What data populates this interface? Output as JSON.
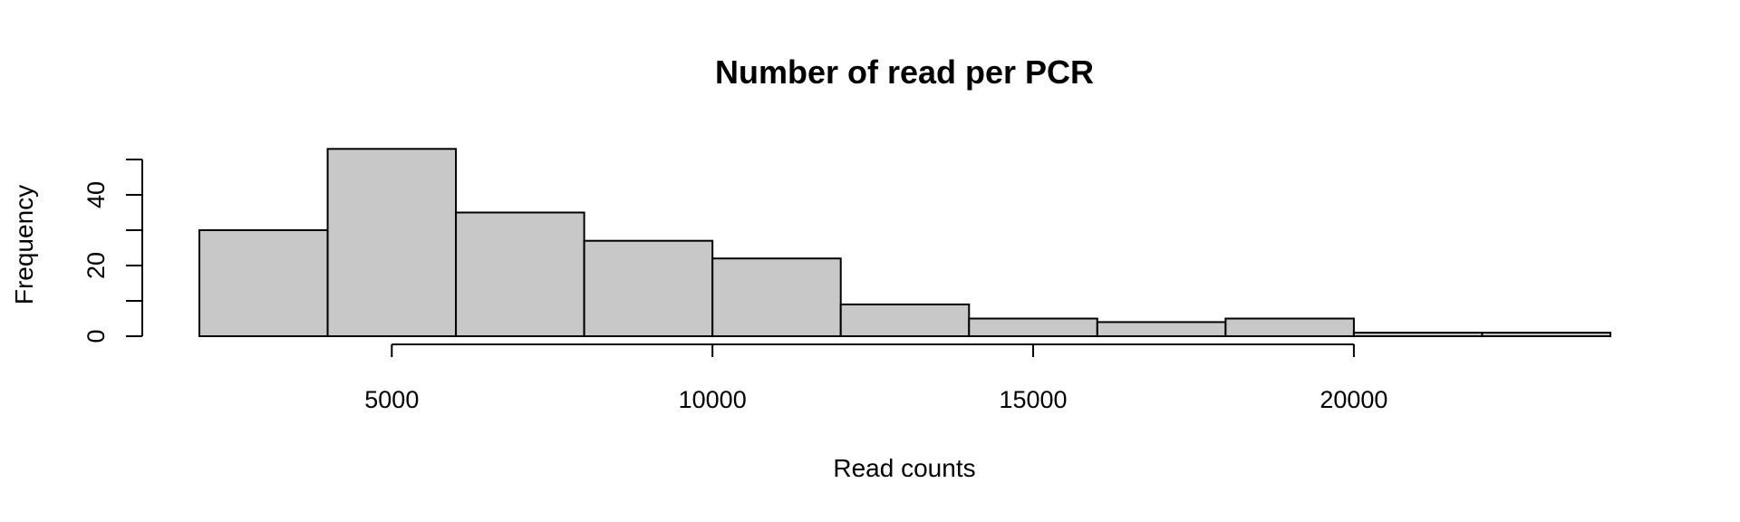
{
  "chart_data": {
    "type": "bar",
    "subtype": "histogram",
    "title": "Number of read per PCR",
    "xlabel": "Read counts",
    "ylabel": "Frequency",
    "bin_edges": [
      2000,
      4000,
      6000,
      8000,
      10000,
      12000,
      14000,
      16000,
      18000,
      20000,
      22000,
      24000
    ],
    "values": [
      30,
      53,
      35,
      27,
      22,
      9,
      5,
      4,
      5,
      1,
      1
    ],
    "xticks": [
      5000,
      10000,
      15000,
      20000
    ],
    "xtick_labels": [
      "5000",
      "10000",
      "15000",
      "20000"
    ],
    "yticks": [
      0,
      10,
      20,
      30,
      40,
      50
    ],
    "ytick_labels": [
      "0",
      "20",
      "40"
    ],
    "ytick_label_values": [
      0,
      20,
      40
    ],
    "xlim": [
      2000,
      24000
    ],
    "ylim": [
      0,
      50
    ],
    "grid": false,
    "bar_color": "#c8c8c8",
    "edge_color": "#000000"
  }
}
